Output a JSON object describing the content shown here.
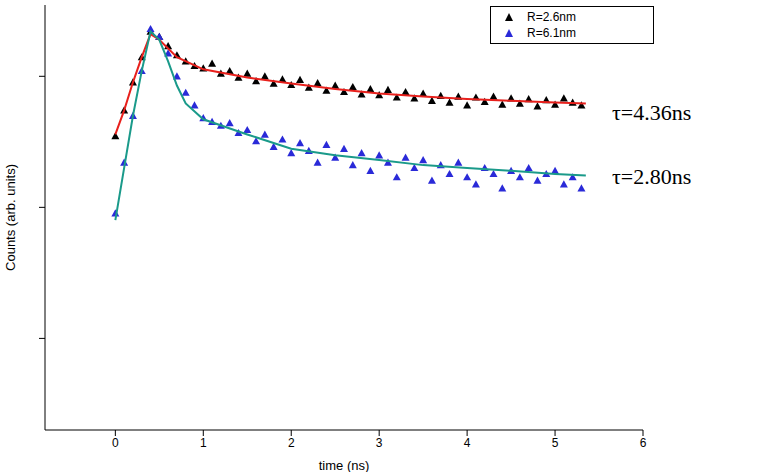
{
  "chart_data": {
    "type": "scatter",
    "x_label": "time (ns)",
    "y_label": "Counts (arb. units)",
    "xlim": [
      -0.8,
      6
    ],
    "xticks": [
      0,
      1,
      2,
      3,
      4,
      5,
      6
    ],
    "ylim": [
      0.02,
      35
    ],
    "yticks": [
      0.1,
      1,
      10
    ],
    "log": "y",
    "tick_labels": "x",
    "grid": false,
    "legend": "upper right",
    "series": [
      {
        "name": "R=2.6nm",
        "color": "#000000",
        "marker": "triangle",
        "x": [
          0,
          0.1,
          0.2,
          0.3,
          0.4,
          0.5,
          0.6,
          0.7,
          0.8,
          0.9,
          1.0,
          1.1,
          1.2,
          1.3,
          1.4,
          1.5,
          1.6,
          1.7,
          1.8,
          1.9,
          2.0,
          2.1,
          2.2,
          2.3,
          2.4,
          2.5,
          2.6,
          2.7,
          2.8,
          2.9,
          3.0,
          3.1,
          3.2,
          3.3,
          3.4,
          3.5,
          3.6,
          3.7,
          3.8,
          3.9,
          4.0,
          4.1,
          4.2,
          4.3,
          4.4,
          4.5,
          4.6,
          4.7,
          4.8,
          4.9,
          5.0,
          5.1,
          5.2,
          5.3
        ],
        "values": [
          3.5,
          5.5,
          9,
          14,
          22,
          20,
          17,
          14.5,
          13,
          12,
          11.5,
          12.5,
          10.5,
          11,
          9.8,
          10.5,
          9.2,
          10,
          8.8,
          9.5,
          8.6,
          9.4,
          8.2,
          8.9,
          7.8,
          8.5,
          7.6,
          8.3,
          7.3,
          8.0,
          7.2,
          7.9,
          6.9,
          7.6,
          6.8,
          7.4,
          6.5,
          7.1,
          6.3,
          7.0,
          6.0,
          6.9,
          6.4,
          7.0,
          6.1,
          6.8,
          6.2,
          6.7,
          5.9,
          6.6,
          6.1,
          6.8,
          6.3,
          6.0
        ],
        "fit": {
          "color": "#e8201c",
          "line_style": "solid",
          "x": [
            0,
            0.1,
            0.2,
            0.3,
            0.4,
            0.5,
            0.7,
            1,
            1.5,
            2,
            2.5,
            3,
            3.5,
            4,
            4.5,
            5,
            5.35
          ],
          "values": [
            3.6,
            5.5,
            9,
            14,
            21,
            19,
            14,
            11.3,
            9.8,
            8.8,
            8.0,
            7.4,
            7.0,
            6.7,
            6.5,
            6.3,
            6.2
          ]
        }
      },
      {
        "name": "R=6.1nm",
        "color": "#2a2ad8",
        "marker": "triangle",
        "x": [
          0,
          0.1,
          0.2,
          0.3,
          0.4,
          0.5,
          0.6,
          0.7,
          0.8,
          0.9,
          1.0,
          1.1,
          1.2,
          1.3,
          1.4,
          1.5,
          1.6,
          1.7,
          1.8,
          1.9,
          2.0,
          2.1,
          2.2,
          2.3,
          2.4,
          2.5,
          2.6,
          2.7,
          2.8,
          2.9,
          3.0,
          3.1,
          3.2,
          3.3,
          3.4,
          3.5,
          3.6,
          3.7,
          3.8,
          3.9,
          4.0,
          4.1,
          4.2,
          4.3,
          4.4,
          4.5,
          4.6,
          4.7,
          4.8,
          4.9,
          5.0,
          5.1,
          5.2,
          5.3
        ],
        "values": [
          0.9,
          2.2,
          5,
          11,
          23,
          20,
          15,
          10,
          7.5,
          6,
          4.8,
          4.5,
          4.2,
          4.4,
          3.7,
          3.9,
          3.2,
          3.6,
          2.9,
          3.3,
          2.6,
          3.1,
          2.7,
          2.2,
          3.0,
          2.4,
          2.8,
          2.1,
          2.6,
          1.9,
          2.5,
          2.2,
          1.7,
          2.4,
          2.0,
          2.3,
          1.6,
          2.1,
          1.8,
          2.2,
          1.7,
          1.5,
          2.0,
          1.8,
          1.4,
          1.9,
          1.7,
          2.0,
          1.6,
          1.8,
          1.9,
          1.5,
          1.7,
          1.4
        ],
        "fit": {
          "color": "#1a9a8a",
          "line_style": "solid",
          "x": [
            0,
            0.1,
            0.2,
            0.3,
            0.4,
            0.5,
            0.6,
            0.7,
            0.8,
            1,
            1.5,
            2,
            2.5,
            3,
            3.5,
            4,
            4.5,
            5,
            5.35
          ],
          "values": [
            0.8,
            2,
            5,
            11,
            22,
            19,
            13,
            8.5,
            6.2,
            4.7,
            3.6,
            2.8,
            2.5,
            2.3,
            2.1,
            2.0,
            1.9,
            1.8,
            1.75
          ]
        }
      }
    ],
    "annotations": [
      {
        "text": "τ=4.36ns",
        "series": "R=2.6nm"
      },
      {
        "text": "τ=2.80ns",
        "series": "R=6.1nm"
      }
    ]
  }
}
